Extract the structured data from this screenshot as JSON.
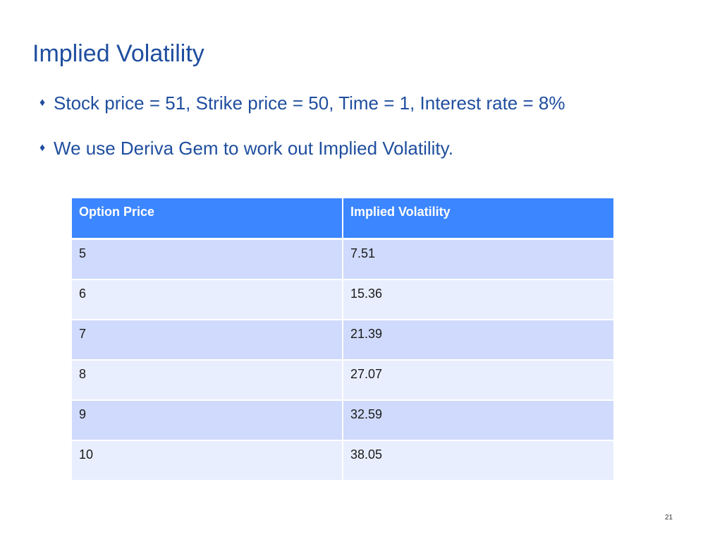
{
  "slide": {
    "title": "Implied Volatility",
    "bullets": [
      {
        "icon": "diamond-bullet-icon",
        "text": "Stock price = 51, Strike price = 50, Time = 1, Interest rate = 8%"
      },
      {
        "icon": "diamond-bullet-icon",
        "text": "We use Deriva Gem to work out Implied Volatility."
      }
    ],
    "page_number": "21"
  },
  "table": {
    "headers": [
      "Option Price",
      "Implied Volatility"
    ],
    "rows": [
      [
        "5",
        "7.51"
      ],
      [
        "6",
        "15.36"
      ],
      [
        "7",
        "21.39"
      ],
      [
        "8",
        "27.07"
      ],
      [
        "9",
        "32.59"
      ],
      [
        "10",
        "38.05"
      ]
    ]
  },
  "colors": {
    "title": "#1f4e9e",
    "header_bg": "#3c86ff",
    "row_odd_bg": "#cfdafc",
    "row_even_bg": "#e8eefd"
  }
}
